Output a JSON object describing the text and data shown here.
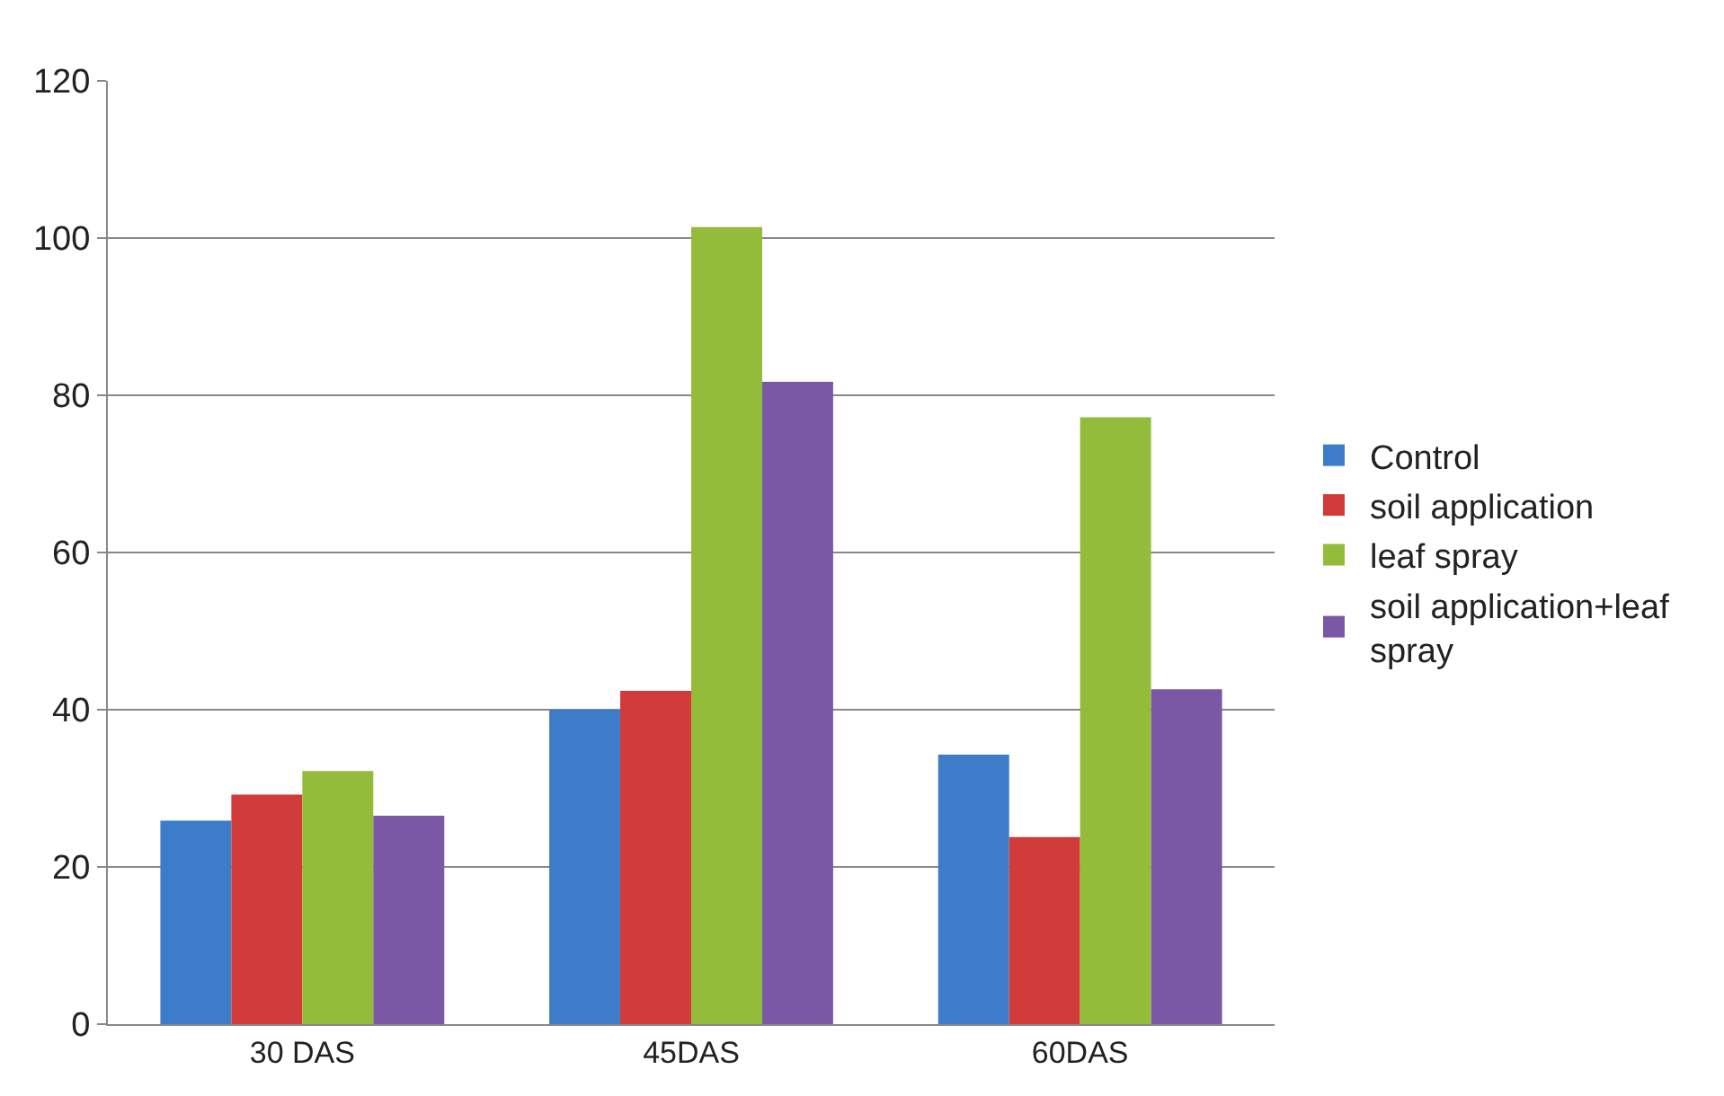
{
  "chart_data": {
    "type": "bar",
    "categories": [
      "30 DAS",
      "45DAS",
      "60DAS"
    ],
    "series": [
      {
        "name": "Control",
        "color": "#3c7cc8",
        "values": [
          25.9,
          40.0,
          34.3
        ]
      },
      {
        "name": "soil application",
        "color": "#d13c3a",
        "values": [
          29.2,
          42.4,
          23.8
        ]
      },
      {
        "name": "leaf spray",
        "color": "#92bc3a",
        "values": [
          32.2,
          101.4,
          77.2
        ]
      },
      {
        "name": "soil application+leaf spray",
        "color": "#7b58a6",
        "values": [
          26.5,
          81.7,
          42.6
        ]
      }
    ],
    "ylim": [
      0,
      120
    ],
    "yticks": [
      0,
      20,
      40,
      60,
      80,
      100,
      120
    ],
    "grid": "y",
    "legend": "right"
  }
}
